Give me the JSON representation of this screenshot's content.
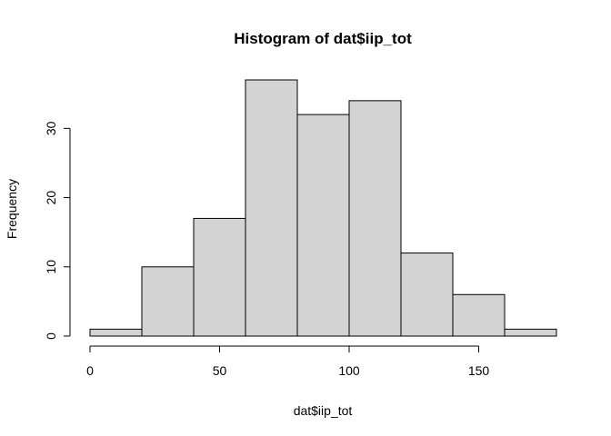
{
  "chart_data": {
    "type": "bar",
    "title": "Histogram of dat$iip_tot",
    "xlabel": "dat$iip_tot",
    "ylabel": "Frequency",
    "bins": [
      {
        "start": 0,
        "end": 20,
        "count": 1
      },
      {
        "start": 20,
        "end": 40,
        "count": 10
      },
      {
        "start": 40,
        "end": 60,
        "count": 17
      },
      {
        "start": 60,
        "end": 80,
        "count": 37
      },
      {
        "start": 80,
        "end": 100,
        "count": 32
      },
      {
        "start": 100,
        "end": 120,
        "count": 34
      },
      {
        "start": 120,
        "end": 140,
        "count": 12
      },
      {
        "start": 140,
        "end": 160,
        "count": 6
      },
      {
        "start": 160,
        "end": 180,
        "count": 1
      }
    ],
    "xlim": [
      0,
      180
    ],
    "ylim": [
      0,
      37
    ],
    "x_ticks": [
      0,
      50,
      100,
      150
    ],
    "y_ticks": [
      0,
      10,
      20,
      30
    ],
    "bar_fill": "#d3d3d3",
    "bar_stroke": "#000000",
    "grid": false,
    "legend": "none"
  }
}
